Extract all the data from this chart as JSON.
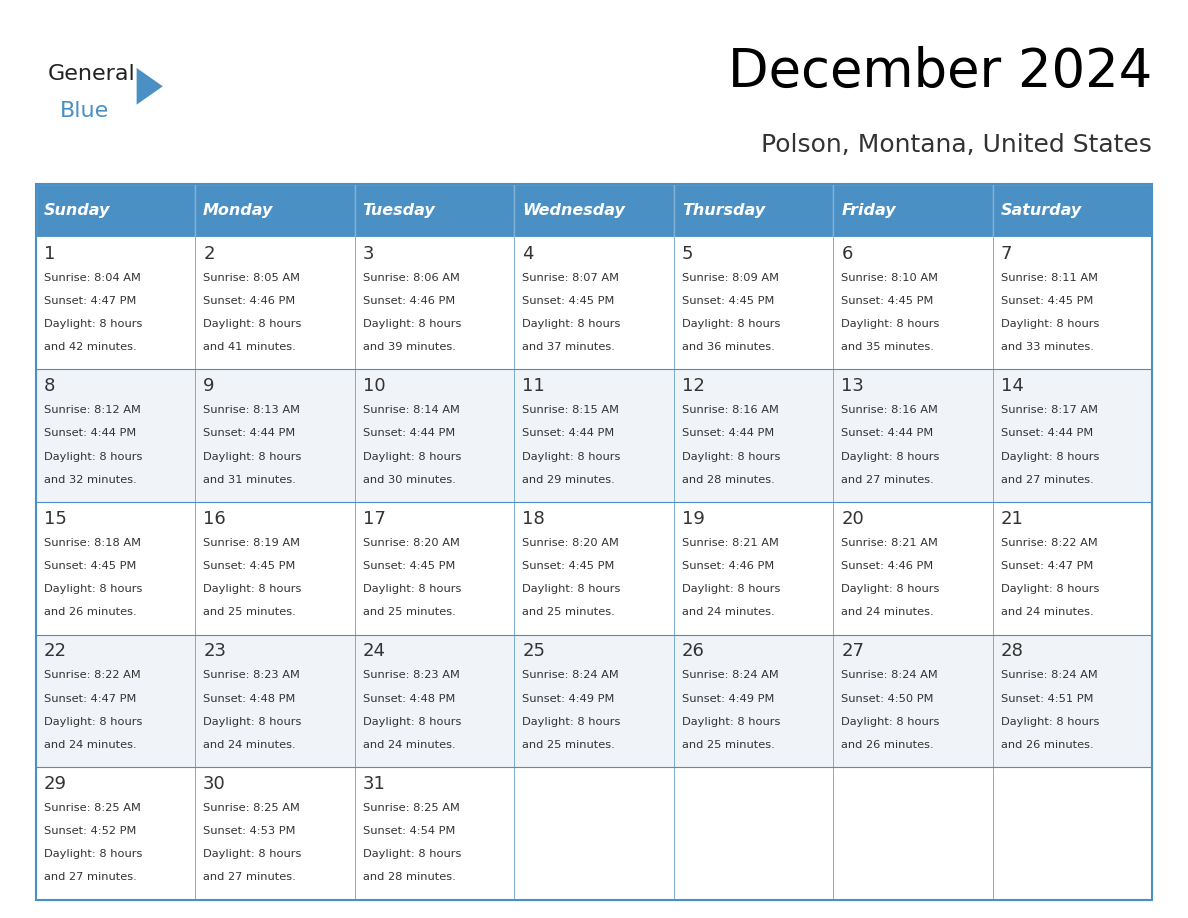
{
  "title": "December 2024",
  "subtitle": "Polson, Montana, United States",
  "days_of_week": [
    "Sunday",
    "Monday",
    "Tuesday",
    "Wednesday",
    "Thursday",
    "Friday",
    "Saturday"
  ],
  "header_bg": "#4A90C4",
  "header_text_color": "#FFFFFF",
  "cell_bg_light": "#FFFFFF",
  "cell_bg_alt": "#F0F4F8",
  "border_color": "#4A90C4",
  "day_number_color": "#333333",
  "cell_text_color": "#333333",
  "calendar_data": [
    [
      {
        "day": 1,
        "sunrise": "8:04 AM",
        "sunset": "4:47 PM",
        "daylight": "8 hours and 42 minutes."
      },
      {
        "day": 2,
        "sunrise": "8:05 AM",
        "sunset": "4:46 PM",
        "daylight": "8 hours and 41 minutes."
      },
      {
        "day": 3,
        "sunrise": "8:06 AM",
        "sunset": "4:46 PM",
        "daylight": "8 hours and 39 minutes."
      },
      {
        "day": 4,
        "sunrise": "8:07 AM",
        "sunset": "4:45 PM",
        "daylight": "8 hours and 37 minutes."
      },
      {
        "day": 5,
        "sunrise": "8:09 AM",
        "sunset": "4:45 PM",
        "daylight": "8 hours and 36 minutes."
      },
      {
        "day": 6,
        "sunrise": "8:10 AM",
        "sunset": "4:45 PM",
        "daylight": "8 hours and 35 minutes."
      },
      {
        "day": 7,
        "sunrise": "8:11 AM",
        "sunset": "4:45 PM",
        "daylight": "8 hours and 33 minutes."
      }
    ],
    [
      {
        "day": 8,
        "sunrise": "8:12 AM",
        "sunset": "4:44 PM",
        "daylight": "8 hours and 32 minutes."
      },
      {
        "day": 9,
        "sunrise": "8:13 AM",
        "sunset": "4:44 PM",
        "daylight": "8 hours and 31 minutes."
      },
      {
        "day": 10,
        "sunrise": "8:14 AM",
        "sunset": "4:44 PM",
        "daylight": "8 hours and 30 minutes."
      },
      {
        "day": 11,
        "sunrise": "8:15 AM",
        "sunset": "4:44 PM",
        "daylight": "8 hours and 29 minutes."
      },
      {
        "day": 12,
        "sunrise": "8:16 AM",
        "sunset": "4:44 PM",
        "daylight": "8 hours and 28 minutes."
      },
      {
        "day": 13,
        "sunrise": "8:16 AM",
        "sunset": "4:44 PM",
        "daylight": "8 hours and 27 minutes."
      },
      {
        "day": 14,
        "sunrise": "8:17 AM",
        "sunset": "4:44 PM",
        "daylight": "8 hours and 27 minutes."
      }
    ],
    [
      {
        "day": 15,
        "sunrise": "8:18 AM",
        "sunset": "4:45 PM",
        "daylight": "8 hours and 26 minutes."
      },
      {
        "day": 16,
        "sunrise": "8:19 AM",
        "sunset": "4:45 PM",
        "daylight": "8 hours and 25 minutes."
      },
      {
        "day": 17,
        "sunrise": "8:20 AM",
        "sunset": "4:45 PM",
        "daylight": "8 hours and 25 minutes."
      },
      {
        "day": 18,
        "sunrise": "8:20 AM",
        "sunset": "4:45 PM",
        "daylight": "8 hours and 25 minutes."
      },
      {
        "day": 19,
        "sunrise": "8:21 AM",
        "sunset": "4:46 PM",
        "daylight": "8 hours and 24 minutes."
      },
      {
        "day": 20,
        "sunrise": "8:21 AM",
        "sunset": "4:46 PM",
        "daylight": "8 hours and 24 minutes."
      },
      {
        "day": 21,
        "sunrise": "8:22 AM",
        "sunset": "4:47 PM",
        "daylight": "8 hours and 24 minutes."
      }
    ],
    [
      {
        "day": 22,
        "sunrise": "8:22 AM",
        "sunset": "4:47 PM",
        "daylight": "8 hours and 24 minutes."
      },
      {
        "day": 23,
        "sunrise": "8:23 AM",
        "sunset": "4:48 PM",
        "daylight": "8 hours and 24 minutes."
      },
      {
        "day": 24,
        "sunrise": "8:23 AM",
        "sunset": "4:48 PM",
        "daylight": "8 hours and 24 minutes."
      },
      {
        "day": 25,
        "sunrise": "8:24 AM",
        "sunset": "4:49 PM",
        "daylight": "8 hours and 25 minutes."
      },
      {
        "day": 26,
        "sunrise": "8:24 AM",
        "sunset": "4:49 PM",
        "daylight": "8 hours and 25 minutes."
      },
      {
        "day": 27,
        "sunrise": "8:24 AM",
        "sunset": "4:50 PM",
        "daylight": "8 hours and 26 minutes."
      },
      {
        "day": 28,
        "sunrise": "8:24 AM",
        "sunset": "4:51 PM",
        "daylight": "8 hours and 26 minutes."
      }
    ],
    [
      {
        "day": 29,
        "sunrise": "8:25 AM",
        "sunset": "4:52 PM",
        "daylight": "8 hours and 27 minutes."
      },
      {
        "day": 30,
        "sunrise": "8:25 AM",
        "sunset": "4:53 PM",
        "daylight": "8 hours and 27 minutes."
      },
      {
        "day": 31,
        "sunrise": "8:25 AM",
        "sunset": "4:54 PM",
        "daylight": "8 hours and 28 minutes."
      },
      null,
      null,
      null,
      null
    ]
  ],
  "logo_text_general": "General",
  "logo_text_blue": "Blue",
  "logo_color_general": "#222222",
  "logo_color_blue": "#4A90C4",
  "logo_triangle_color": "#4A90C4"
}
